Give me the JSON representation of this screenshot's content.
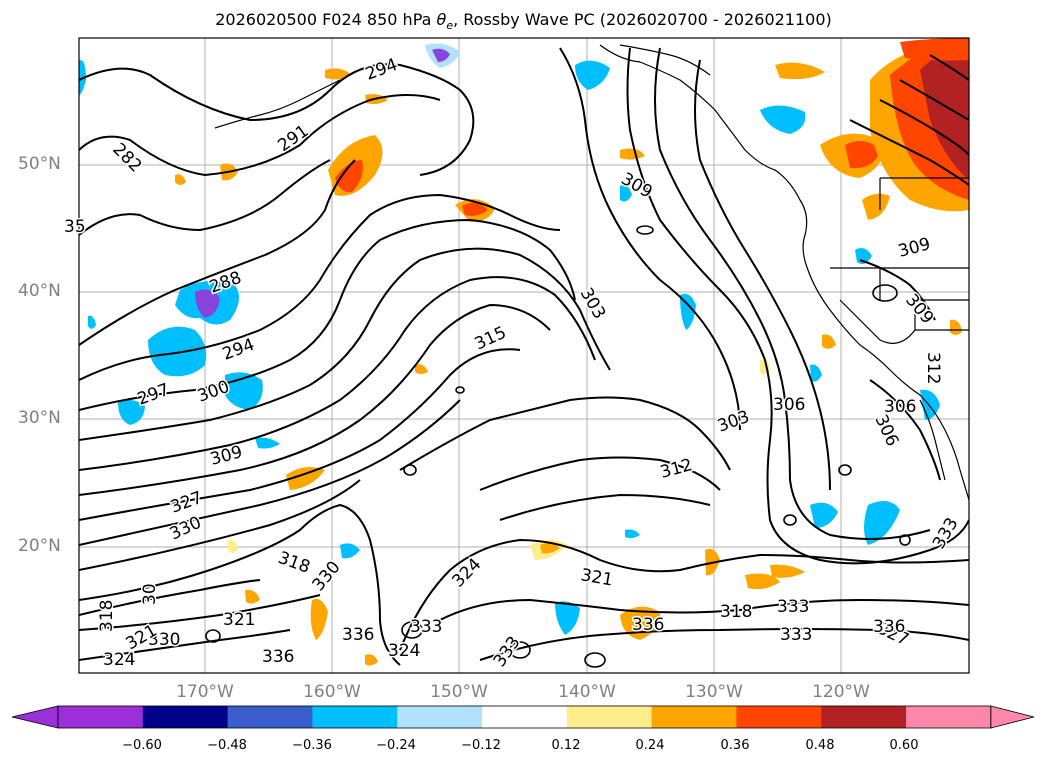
{
  "title": {
    "prefix": "2026020500 F024 850 hPa ",
    "symbol": "θ",
    "subscript": "e",
    "suffix": ", Rossby Wave PC (2026020700 - 2026021100)"
  },
  "lat_labels": [
    "50°N",
    "40°N",
    "30°N",
    "20°N"
  ],
  "lon_labels": [
    "170°W",
    "160°W",
    "150°W",
    "140°W",
    "130°W",
    "120°W"
  ],
  "contour_labels": [
    "294",
    "291",
    "282",
    "35",
    "288",
    "294",
    "297",
    "300",
    "309",
    "315",
    "303",
    "309",
    "303",
    "306",
    "306",
    "312",
    "309",
    "309",
    "312",
    "306",
    "327",
    "330",
    "318",
    "330",
    "324",
    "321",
    "318",
    "333",
    "336",
    "333",
    "336",
    "333",
    "324",
    "333",
    "336",
    "330",
    "321",
    "324",
    "321",
    "30",
    "318",
    "333",
    "327",
    "336"
  ],
  "colorbar": {
    "ticks": [
      "−0.60",
      "−0.48",
      "−0.36",
      "−0.24",
      "−0.12",
      "0.12",
      "0.24",
      "0.36",
      "0.48",
      "0.60"
    ],
    "colors": [
      "#9b30d9",
      "#00008b",
      "#3a5fcd",
      "#00bfff",
      "#b0e2ff",
      "#ffffff",
      "#ffec8b",
      "#ffa500",
      "#ff4500",
      "#b22222",
      "#ff88aa"
    ]
  },
  "legend_colors": {
    "ocean_cyan": "#00bfff",
    "light_blue": "#b0e2ff",
    "royal_blue": "#3a5fcd",
    "purple": "#8844dd",
    "yellow": "#ffec8b",
    "orange": "#ffa500",
    "red_orange": "#ff4500",
    "dark_red": "#b22222"
  }
}
